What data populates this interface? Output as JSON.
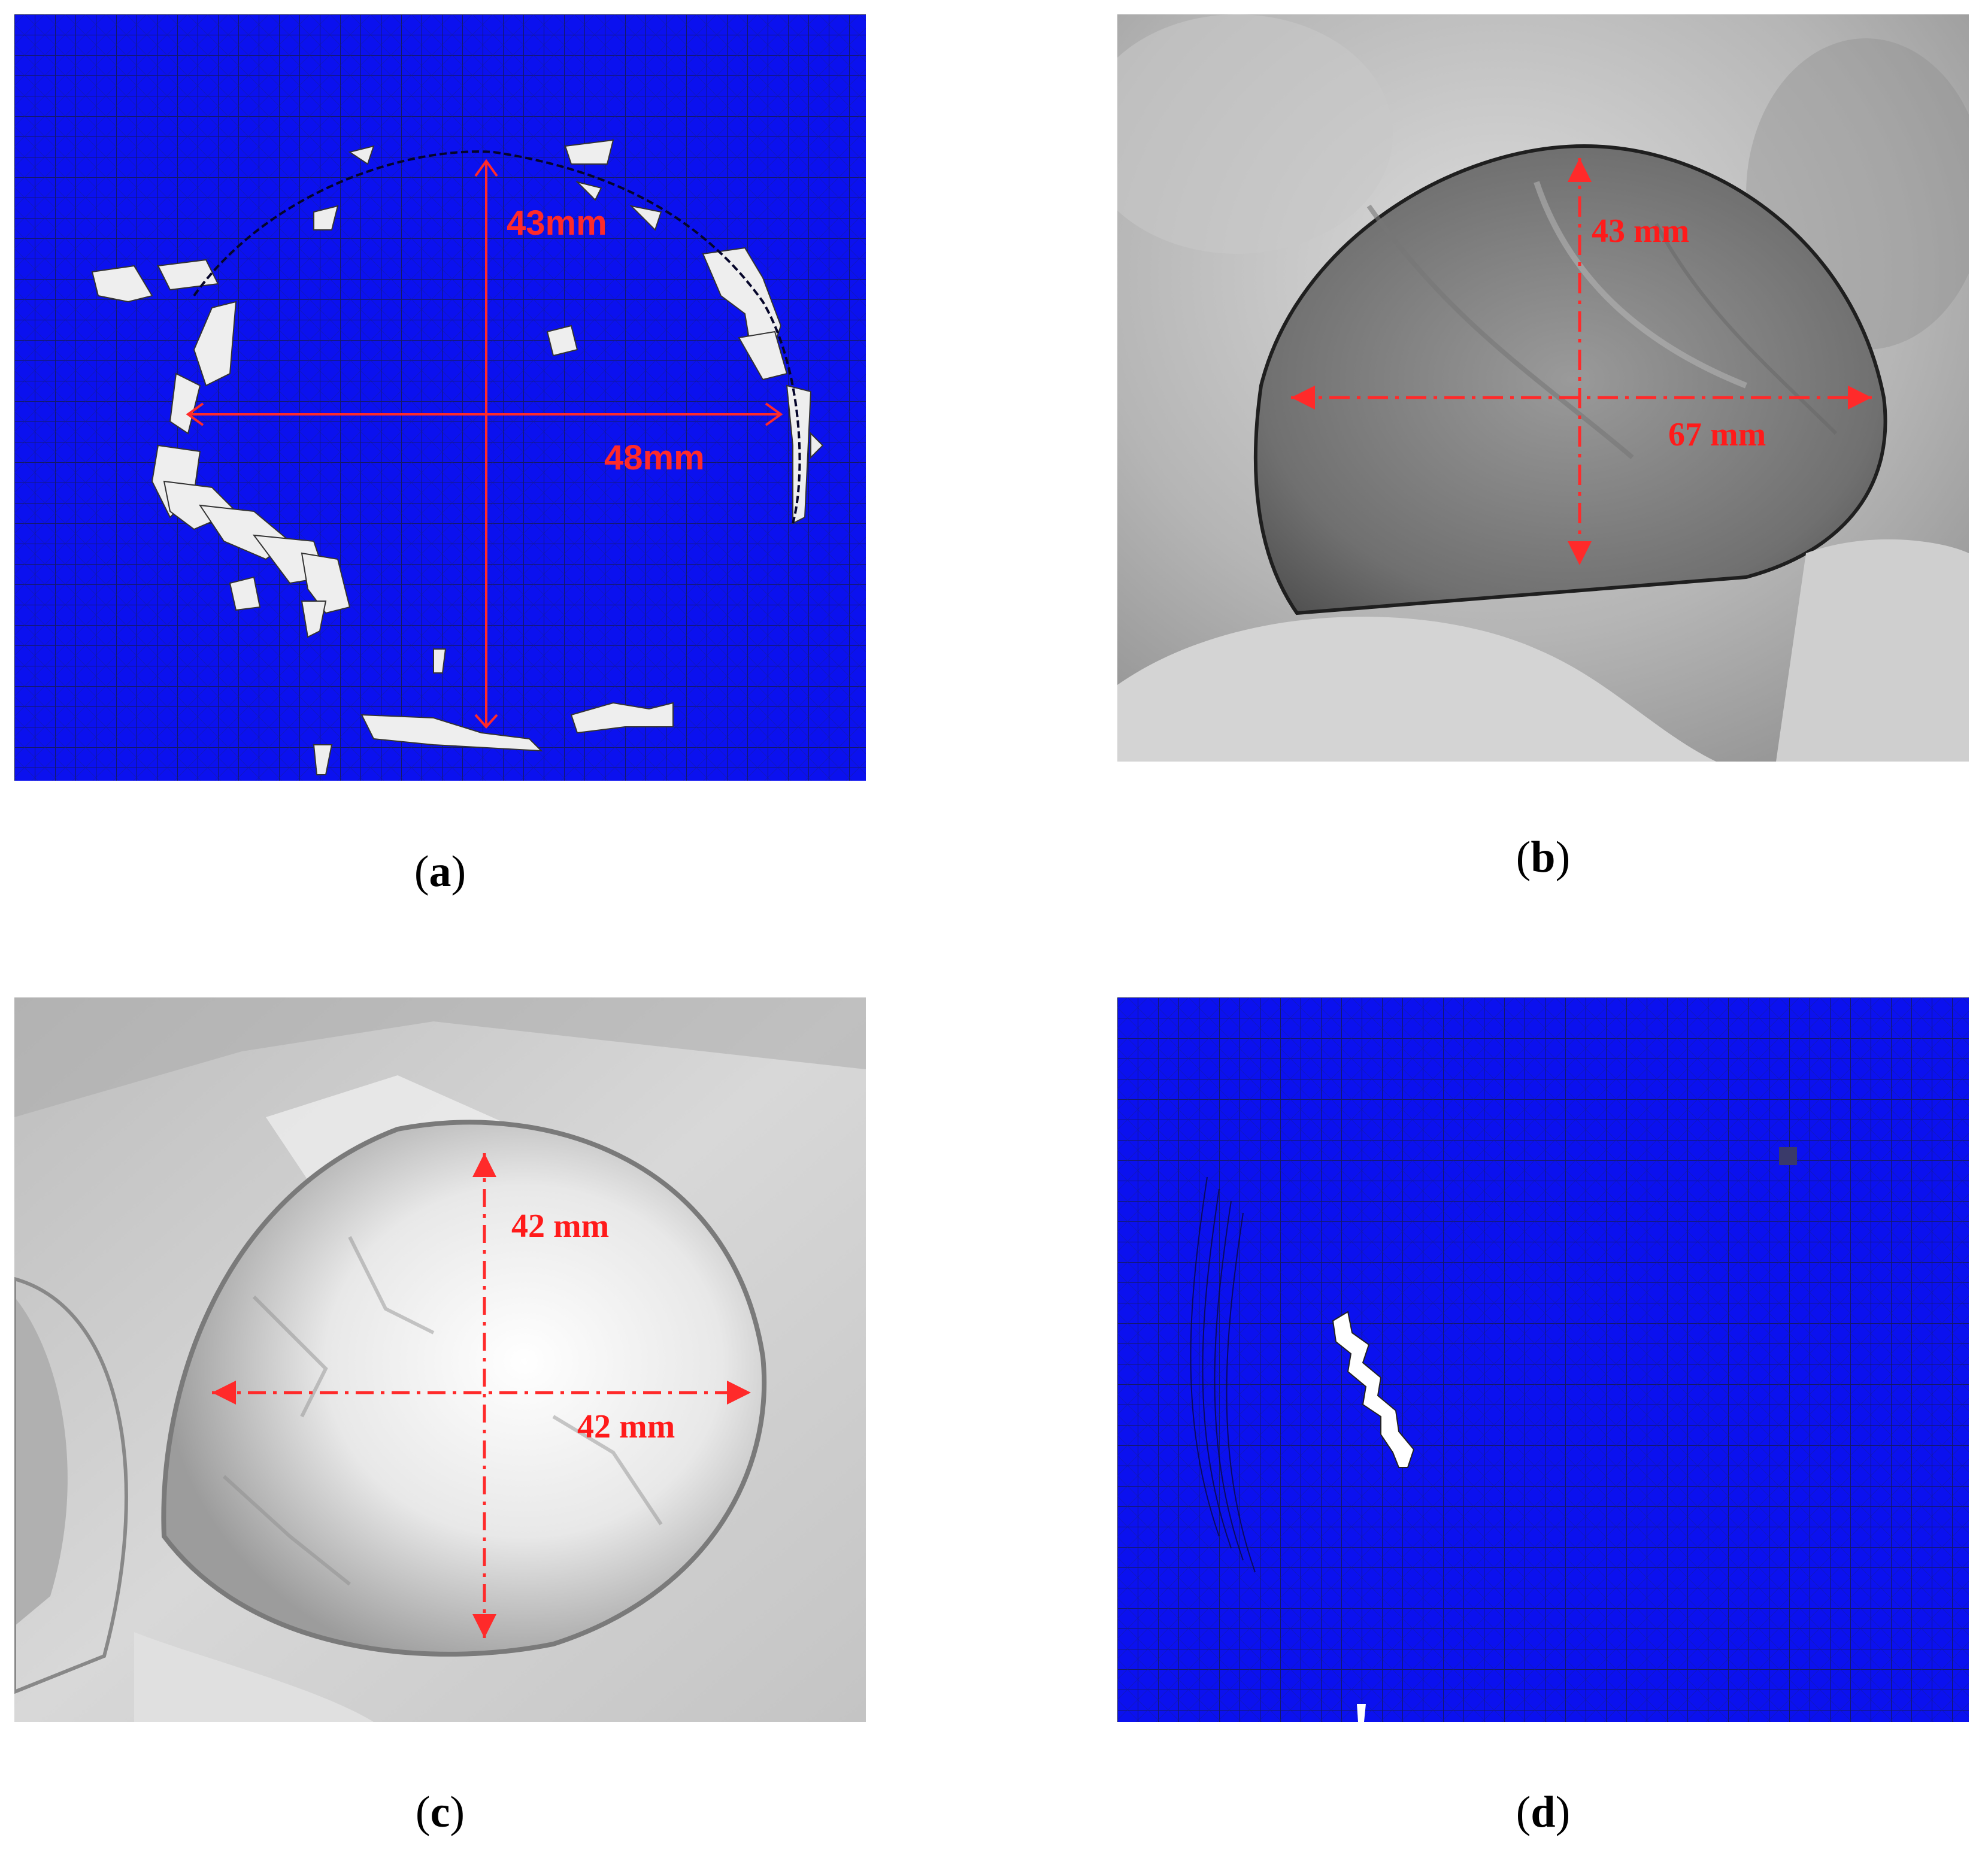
{
  "panels": [
    {
      "id": "a",
      "caption_letter": "a",
      "labels": {
        "vertical": "43mm",
        "horizontal": "48mm"
      }
    },
    {
      "id": "b",
      "caption_letter": "b",
      "labels": {
        "vertical": "43 mm",
        "horizontal": "67 mm"
      }
    },
    {
      "id": "c",
      "caption_letter": "c",
      "labels": {
        "vertical": "42 mm",
        "horizontal": "42 mm"
      }
    },
    {
      "id": "d",
      "caption_letter": "d",
      "labels": {}
    }
  ],
  "caption_open": "(",
  "caption_close": ")",
  "colors": {
    "mesh_blue": "#0b11ef",
    "mesh_line": "#101040",
    "measure_red": "#ff1a1a",
    "fracture_white": "#f2f2f2"
  }
}
